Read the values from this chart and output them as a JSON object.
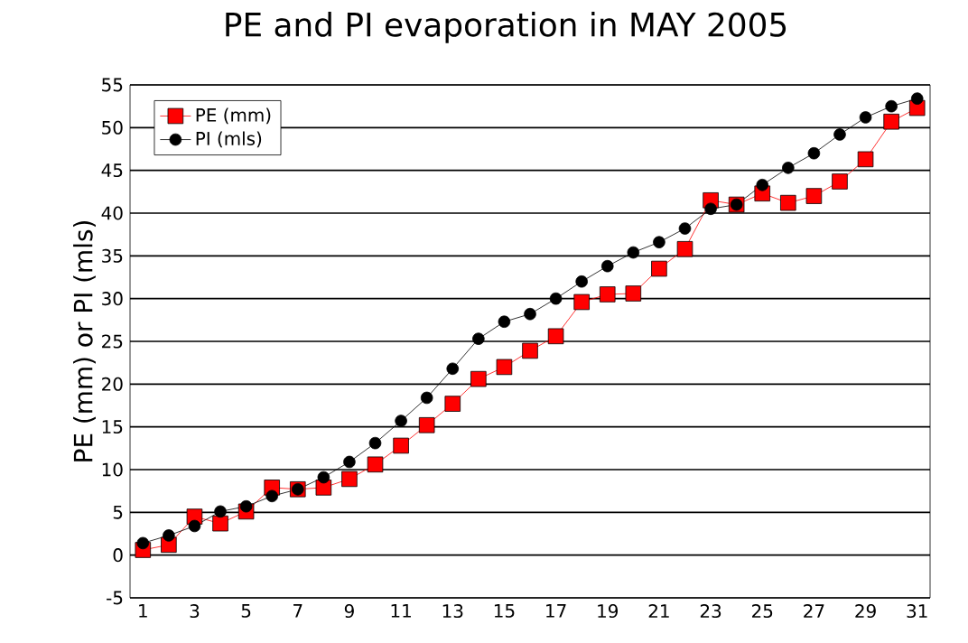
{
  "chart_data": {
    "type": "line",
    "title": "PE and PI evaporation in MAY 2005",
    "ylabel": "PE (mm) or PI (mls)",
    "x": [
      1,
      2,
      3,
      4,
      5,
      6,
      7,
      8,
      9,
      10,
      11,
      12,
      13,
      14,
      15,
      16,
      17,
      18,
      19,
      20,
      21,
      22,
      23,
      24,
      25,
      26,
      27,
      28,
      29,
      30,
      31
    ],
    "series": [
      {
        "name": "PE (mm)",
        "color": "#ff0000",
        "marker": "square",
        "values": [
          0.6,
          1.2,
          4.5,
          3.7,
          5.1,
          7.9,
          7.7,
          7.9,
          8.9,
          10.6,
          12.8,
          15.2,
          17.7,
          20.6,
          22.0,
          23.9,
          25.6,
          29.6,
          30.5,
          30.6,
          33.5,
          35.8,
          41.5,
          41,
          42.3,
          41.2,
          42,
          43.7,
          46.3,
          50.7,
          52.3
        ]
      },
      {
        "name": "PI (mls)",
        "color": "#000000",
        "marker": "circle",
        "values": [
          1.4,
          2.3,
          3.4,
          5.1,
          5.7,
          6.9,
          7.7,
          9.1,
          10.9,
          13.1,
          15.7,
          18.4,
          21.8,
          25.3,
          27.3,
          28.2,
          30,
          32,
          33.8,
          35.4,
          36.6,
          38.2,
          40.5,
          41,
          43.3,
          45.3,
          47,
          49.2,
          51.2,
          52.5,
          53.4
        ]
      }
    ],
    "xlim": [
      0.5,
      31.5
    ],
    "xticks": [
      1,
      3,
      5,
      7,
      9,
      11,
      13,
      15,
      17,
      19,
      21,
      23,
      25,
      27,
      29,
      31
    ],
    "ylim": [
      -5,
      55
    ],
    "yticks": [
      -5,
      0,
      5,
      10,
      15,
      20,
      25,
      30,
      35,
      40,
      45,
      50,
      55
    ],
    "grid": "y",
    "legend": "top left"
  }
}
